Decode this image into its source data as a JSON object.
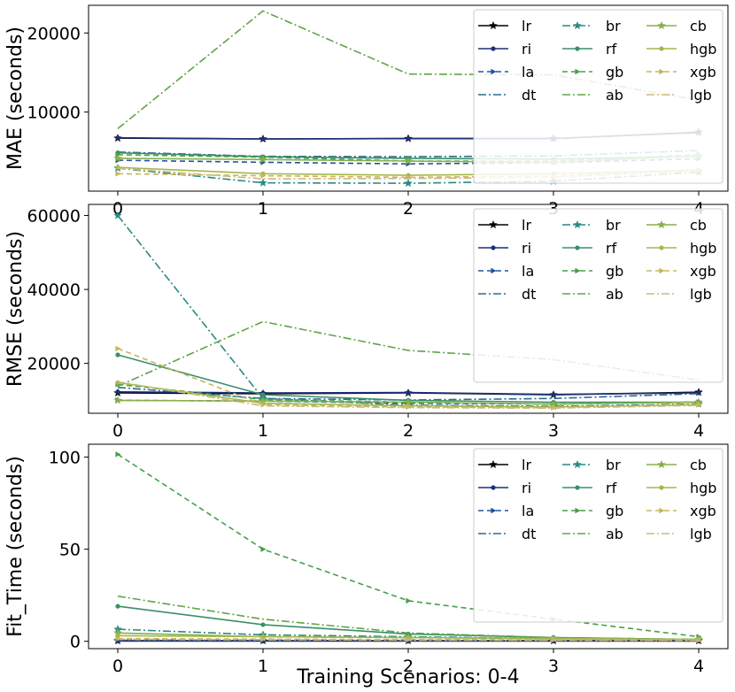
{
  "chart_data": [
    {
      "type": "line",
      "ylabel": "MAE (seconds)",
      "xlabel": "",
      "x": [
        0,
        1,
        2,
        3,
        4
      ],
      "xticks": [
        "0",
        "1",
        "2",
        "3",
        "4"
      ],
      "ylim": [
        0,
        23500
      ],
      "yticks": [
        10000,
        20000
      ],
      "ytick_labels": [
        "10000",
        "20000"
      ],
      "legend": "top-right",
      "series": [
        {
          "name": "lr",
          "values": [
            6700,
            6600,
            6650,
            6650,
            7450
          ]
        },
        {
          "name": "ri",
          "values": [
            6750,
            6600,
            6650,
            6650,
            7400
          ]
        },
        {
          "name": "la",
          "values": [
            3900,
            3650,
            3450,
            3600,
            4100
          ]
        },
        {
          "name": "dt",
          "values": [
            4950,
            4400,
            4350,
            4450,
            5150
          ]
        },
        {
          "name": "br",
          "values": [
            2900,
            1050,
            1000,
            1250,
            2400
          ]
        },
        {
          "name": "rf",
          "values": [
            4850,
            4350,
            4150,
            4050,
            4400
          ]
        },
        {
          "name": "gb",
          "values": [
            4600,
            4300,
            3800,
            3800,
            4600
          ]
        },
        {
          "name": "ab",
          "values": [
            7900,
            22800,
            14800,
            14700,
            11500
          ]
        },
        {
          "name": "cb",
          "values": [
            4150,
            4000,
            3800,
            3650,
            4450
          ]
        },
        {
          "name": "hgb",
          "values": [
            3000,
            2200,
            2000,
            2200,
            2650
          ]
        },
        {
          "name": "xgb",
          "values": [
            2200,
            1950,
            1750,
            1900,
            2650
          ]
        },
        {
          "name": "lgb",
          "values": [
            2900,
            1550,
            1600,
            1750,
            2550
          ]
        }
      ]
    },
    {
      "type": "line",
      "ylabel": "RMSE (seconds)",
      "xlabel": "",
      "x": [
        0,
        1,
        2,
        3,
        4
      ],
      "xticks": [
        "0",
        "1",
        "2",
        "3",
        "4"
      ],
      "ylim": [
        6500,
        63000
      ],
      "yticks": [
        20000,
        40000,
        60000
      ],
      "ytick_labels": [
        "20000",
        "40000",
        "60000"
      ],
      "legend": "top-right",
      "series": [
        {
          "name": "lr",
          "values": [
            12000,
            11800,
            12000,
            11500,
            12200
          ]
        },
        {
          "name": "ri",
          "values": [
            12300,
            12000,
            12100,
            11600,
            12000
          ]
        },
        {
          "name": "la",
          "values": [
            10000,
            9800,
            9200,
            9000,
            9500
          ]
        },
        {
          "name": "dt",
          "values": [
            13500,
            10500,
            10100,
            10500,
            11800
          ]
        },
        {
          "name": "br",
          "values": [
            60000,
            10500,
            8700,
            8400,
            9000
          ]
        },
        {
          "name": "rf",
          "values": [
            22300,
            11500,
            10000,
            9500,
            9500
          ]
        },
        {
          "name": "gb",
          "values": [
            14300,
            10200,
            9500,
            9000,
            9500
          ]
        },
        {
          "name": "ab",
          "values": [
            13800,
            31300,
            23500,
            21000,
            15500
          ]
        },
        {
          "name": "cb",
          "values": [
            10000,
            9800,
            9500,
            9000,
            9500
          ]
        },
        {
          "name": "hgb",
          "values": [
            14800,
            9200,
            8500,
            8200,
            8800
          ]
        },
        {
          "name": "xgb",
          "values": [
            24000,
            8800,
            8200,
            8000,
            8900
          ]
        },
        {
          "name": "lgb",
          "values": [
            15000,
            8500,
            8000,
            7900,
            8600
          ]
        }
      ]
    },
    {
      "type": "line",
      "ylabel": "Fit_Time (seconds)",
      "xlabel": "Training Scenarios: 0-4",
      "x": [
        0,
        1,
        2,
        3,
        4
      ],
      "xticks": [
        "0",
        "1",
        "2",
        "3",
        "4"
      ],
      "ylim": [
        -4,
        107
      ],
      "yticks": [
        0,
        50,
        100
      ],
      "ytick_labels": [
        "0",
        "50",
        "100"
      ],
      "legend": "top-right",
      "series": [
        {
          "name": "lr",
          "values": [
            0.3,
            0.3,
            0.3,
            0.3,
            0.3
          ]
        },
        {
          "name": "ri",
          "values": [
            0.1,
            0.1,
            0.1,
            0.1,
            0.1
          ]
        },
        {
          "name": "la",
          "values": [
            0.6,
            0.5,
            0.5,
            0.4,
            0.4
          ]
        },
        {
          "name": "dt",
          "values": [
            1.0,
            0.8,
            0.6,
            0.5,
            0.5
          ]
        },
        {
          "name": "br",
          "values": [
            6.5,
            3.5,
            2.5,
            1.5,
            1.0
          ]
        },
        {
          "name": "rf",
          "values": [
            19.0,
            9.0,
            4.0,
            2.0,
            1.0
          ]
        },
        {
          "name": "gb",
          "values": [
            101.5,
            50.0,
            22.0,
            12.0,
            2.5
          ]
        },
        {
          "name": "ab",
          "values": [
            24.5,
            12.0,
            4.5,
            2.0,
            1.0
          ]
        },
        {
          "name": "cb",
          "values": [
            4.5,
            2.5,
            2.0,
            1.5,
            1.0
          ]
        },
        {
          "name": "hgb",
          "values": [
            3.0,
            2.5,
            2.0,
            1.5,
            1.0
          ]
        },
        {
          "name": "xgb",
          "values": [
            1.5,
            1.2,
            1.0,
            0.8,
            0.6
          ]
        },
        {
          "name": "lgb",
          "values": [
            1.0,
            0.8,
            0.6,
            0.5,
            0.4
          ]
        }
      ]
    }
  ],
  "styles": [
    {
      "name": "lr",
      "color": "#000000",
      "dash": "solid",
      "marker": "star"
    },
    {
      "name": "ri",
      "color": "#1f2f7a",
      "dash": "solid",
      "marker": "dot"
    },
    {
      "name": "la",
      "color": "#23539e",
      "dash": "dashed",
      "marker": "triangle"
    },
    {
      "name": "dt",
      "color": "#2a6b94",
      "dash": "dashdot",
      "marker": "none"
    },
    {
      "name": "br",
      "color": "#2a8a82",
      "dash": "dashdot",
      "marker": "star"
    },
    {
      "name": "rf",
      "color": "#3a8f68",
      "dash": "solid",
      "marker": "dot"
    },
    {
      "name": "gb",
      "color": "#45a04a",
      "dash": "dashed",
      "marker": "triangle"
    },
    {
      "name": "ab",
      "color": "#5ea545",
      "dash": "dashdot",
      "marker": "none"
    },
    {
      "name": "cb",
      "color": "#86b04a",
      "dash": "solid",
      "marker": "star"
    },
    {
      "name": "hgb",
      "color": "#a3b84f",
      "dash": "solid",
      "marker": "dot"
    },
    {
      "name": "xgb",
      "color": "#c8b55a",
      "dash": "dashed",
      "marker": "triangle"
    },
    {
      "name": "lgb",
      "color": "#cdb87a",
      "dash": "dashdot",
      "marker": "none"
    }
  ]
}
